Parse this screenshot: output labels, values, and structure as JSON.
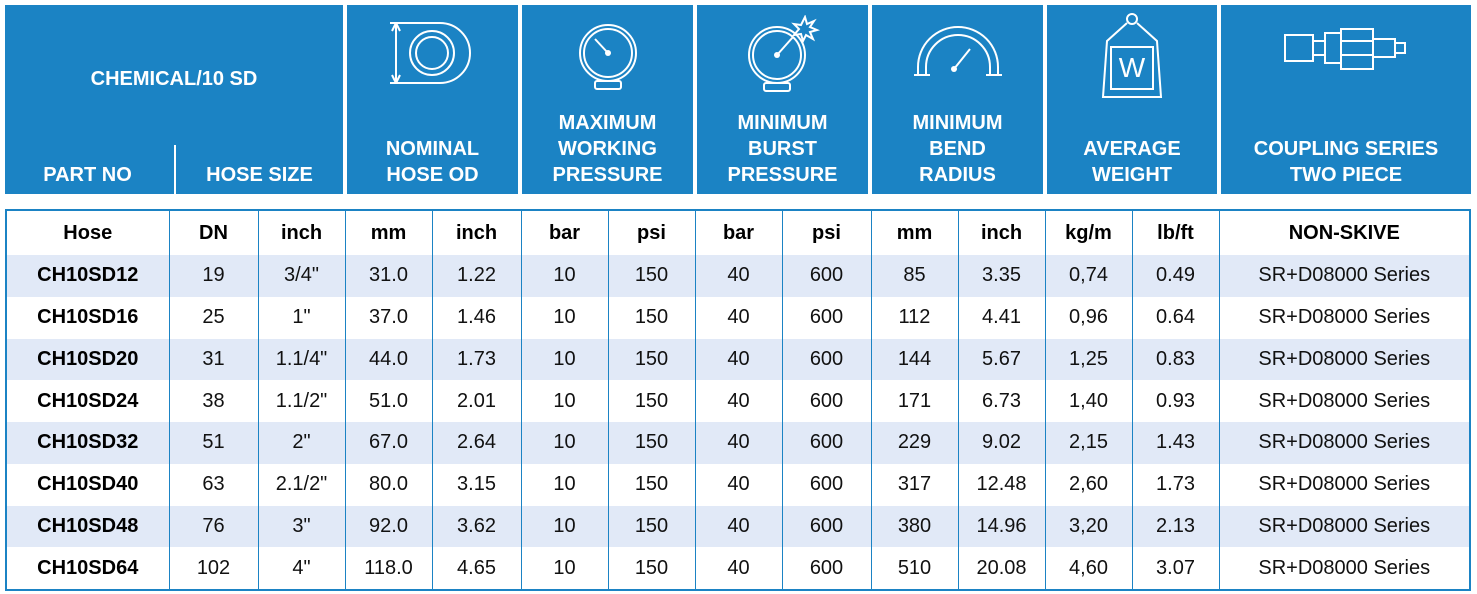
{
  "header": {
    "product": "CHEMICAL/10 SD",
    "part_no": "PART NO",
    "hose_size": "HOSE SIZE",
    "nominal_od": [
      "NOMINAL",
      "HOSE OD"
    ],
    "max_working": [
      "MAXIMUM",
      "WORKING",
      "PRESSURE"
    ],
    "min_burst": [
      "MINIMUM",
      "BURST",
      "PRESSURE"
    ],
    "min_bend": [
      "MINIMUM",
      "BEND",
      "RADIUS"
    ],
    "avg_weight": [
      "AVERAGE",
      "WEIGHT"
    ],
    "coupling": [
      "COUPLING SERIES",
      "TWO PIECE"
    ],
    "weight_icon_letter": "W"
  },
  "icons": [
    "hose-od-icon",
    "pressure-gauge-icon",
    "burst-gauge-icon",
    "bend-radius-icon",
    "weight-icon",
    "coupling-icon"
  ],
  "subheaders": [
    "Hose",
    "DN",
    "inch",
    "mm",
    "inch",
    "bar",
    "psi",
    "bar",
    "psi",
    "mm",
    "inch",
    "kg/m",
    "lb/ft",
    "NON-SKIVE"
  ],
  "rows": [
    [
      "CH10SD12",
      "19",
      "3/4\"",
      "31.0",
      "1.22",
      "10",
      "150",
      "40",
      "600",
      "85",
      "3.35",
      "0,74",
      "0.49",
      "SR+D08000 Series"
    ],
    [
      "CH10SD16",
      "25",
      "1\"",
      "37.0",
      "1.46",
      "10",
      "150",
      "40",
      "600",
      "112",
      "4.41",
      "0,96",
      "0.64",
      "SR+D08000 Series"
    ],
    [
      "CH10SD20",
      "31",
      "1.1/4\"",
      "44.0",
      "1.73",
      "10",
      "150",
      "40",
      "600",
      "144",
      "5.67",
      "1,25",
      "0.83",
      "SR+D08000 Series"
    ],
    [
      "CH10SD24",
      "38",
      "1.1/2\"",
      "51.0",
      "2.01",
      "10",
      "150",
      "40",
      "600",
      "171",
      "6.73",
      "1,40",
      "0.93",
      "SR+D08000 Series"
    ],
    [
      "CH10SD32",
      "51",
      "2\"",
      "67.0",
      "2.64",
      "10",
      "150",
      "40",
      "600",
      "229",
      "9.02",
      "2,15",
      "1.43",
      "SR+D08000 Series"
    ],
    [
      "CH10SD40",
      "63",
      "2.1/2\"",
      "80.0",
      "3.15",
      "10",
      "150",
      "40",
      "600",
      "317",
      "12.48",
      "2,60",
      "1.73",
      "SR+D08000 Series"
    ],
    [
      "CH10SD48",
      "76",
      "3\"",
      "92.0",
      "3.62",
      "10",
      "150",
      "40",
      "600",
      "380",
      "14.96",
      "3,20",
      "2.13",
      "SR+D08000 Series"
    ],
    [
      "CH10SD64",
      "102",
      "4\"",
      "118.0",
      "4.65",
      "10",
      "150",
      "40",
      "600",
      "510",
      "20.08",
      "4,60",
      "3.07",
      "SR+D08000 Series"
    ]
  ],
  "colors": {
    "header_bg": "#1b83c4",
    "row_alt": "#e1e9f7"
  }
}
